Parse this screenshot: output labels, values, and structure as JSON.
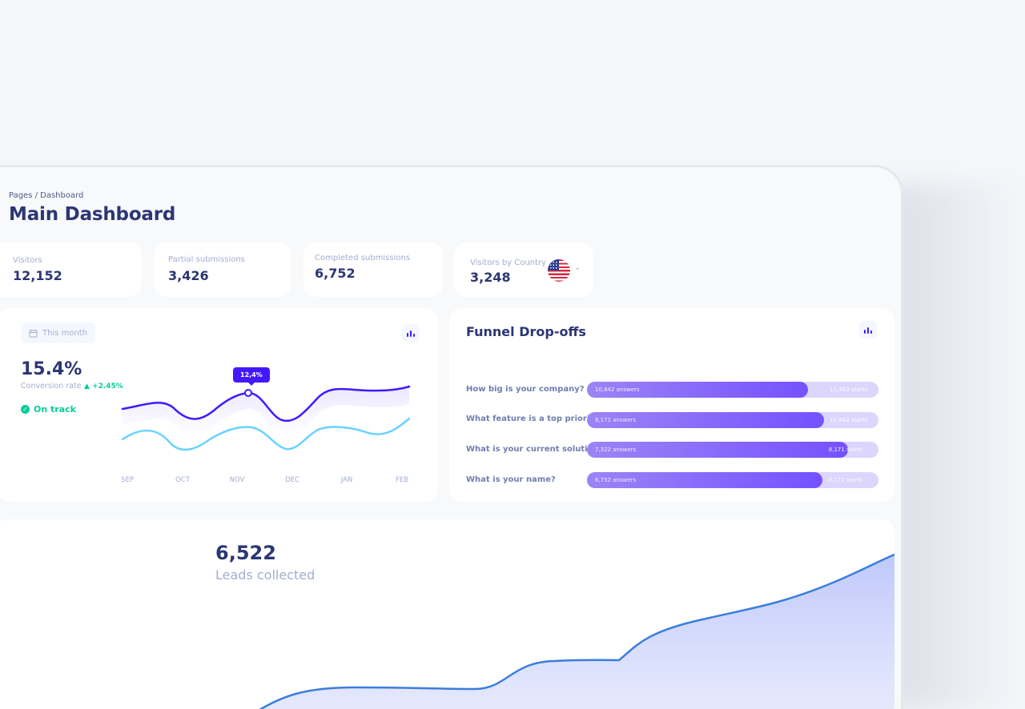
{
  "breadcrumb": "Pages / Dashboard",
  "page_title": "Main Dashboard",
  "stats": [
    {
      "label": "Visitors",
      "value": "12,152"
    },
    {
      "label": "Partial submissions",
      "value": "3,426"
    },
    {
      "label": "Completed submissions",
      "value": "6,752"
    },
    {
      "label": "Visitors by Country",
      "value": "3,248",
      "flag_icon": "us-flag-icon"
    }
  ],
  "conversion": {
    "period_label": "This month",
    "rate": "15.4%",
    "rate_label": "Conversion rate",
    "delta": "+2.45%",
    "status": "On track",
    "tooltip": "12,4%",
    "months": [
      "SEP",
      "OCT",
      "NOV",
      "DEC",
      "JAN",
      "FEB"
    ]
  },
  "funnel": {
    "title": "Funnel Drop-offs",
    "rows": [
      {
        "question": "How big is your company?",
        "answers": "10,842 answers",
        "starts": "11,453 starts",
        "fill": 0.757
      },
      {
        "question": "What feature is a top priority",
        "answers": "8,171 answers",
        "starts": "10,842 starts",
        "fill": 0.813
      },
      {
        "question": "What is your current solution?",
        "answers": "7,322 answers",
        "starts": "8,171 starts",
        "fill": 0.896
      },
      {
        "question": "What is your name?",
        "answers": "6,752 answers",
        "starts": "8,171 starts",
        "fill": 0.808
      }
    ]
  },
  "leads": {
    "value": "6,522",
    "label": "Leads collected"
  },
  "colors": {
    "primary": "#4318ff",
    "navy": "#2b3674",
    "muted": "#a3aed0",
    "green": "#05cd99",
    "cyan": "#6ad2ff",
    "blue_line": "#3b7ddd"
  }
}
